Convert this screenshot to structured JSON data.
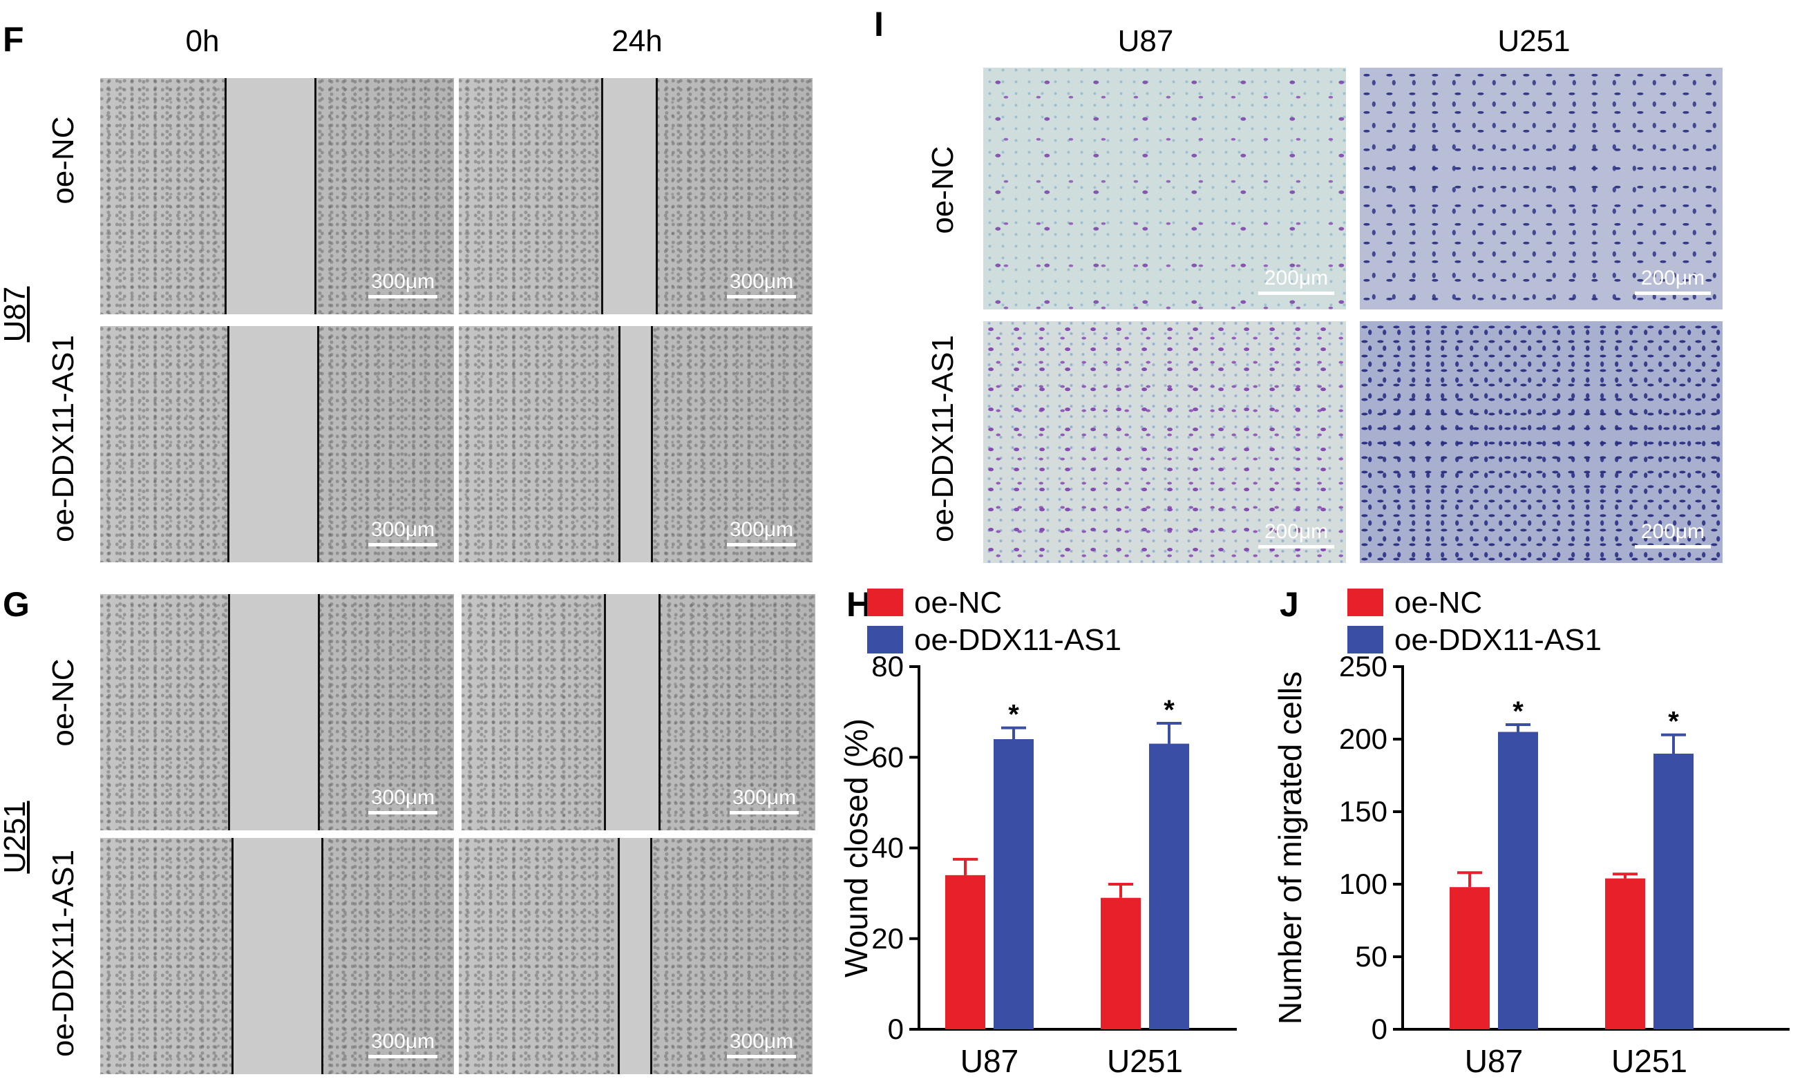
{
  "panels": {
    "F": {
      "label": "F",
      "col_titles": [
        "0h",
        "24h"
      ],
      "cell_line": "U87",
      "rows": [
        "oe-NC",
        "oe-DDX11-AS1"
      ],
      "scale": "300μm"
    },
    "G": {
      "label": "G",
      "cell_line": "U251",
      "rows": [
        "oe-NC",
        "oe-DDX11-AS1"
      ],
      "scale": "300μm"
    },
    "I": {
      "label": "I",
      "col_titles": [
        "U87",
        "U251"
      ],
      "rows": [
        "oe-NC",
        "oe-DDX11-AS1"
      ],
      "scale": "200μm"
    },
    "H": {
      "label": "H"
    },
    "J": {
      "label": "J"
    }
  },
  "colors": {
    "oe_nc": "#e8202a",
    "oe_ddx": "#3b4ea6"
  },
  "chart_data": [
    {
      "type": "bar",
      "panel": "H",
      "categories": [
        "U87",
        "U251"
      ],
      "series": [
        {
          "name": "oe-NC",
          "values": [
            34,
            29
          ],
          "errors": [
            3.5,
            3
          ]
        },
        {
          "name": "oe-DDX11-AS1",
          "values": [
            64,
            63
          ],
          "errors": [
            2.5,
            4.5
          ]
        }
      ],
      "significance": [
        "*",
        "*"
      ],
      "ylabel": "Wound closed (%)",
      "ylim": [
        0,
        80
      ],
      "yticks": [
        0,
        20,
        40,
        60,
        80
      ],
      "legend": "top"
    },
    {
      "type": "bar",
      "panel": "J",
      "categories": [
        "U87",
        "U251"
      ],
      "series": [
        {
          "name": "oe-NC",
          "values": [
            98,
            104
          ],
          "errors": [
            10,
            3
          ]
        },
        {
          "name": "oe-DDX11-AS1",
          "values": [
            205,
            190
          ],
          "errors": [
            5,
            13
          ]
        }
      ],
      "significance": [
        "*",
        "*"
      ],
      "ylabel": "Number of migrated cells",
      "ylim": [
        0,
        250
      ],
      "yticks": [
        0,
        50,
        100,
        150,
        200,
        250
      ],
      "legend": "top"
    }
  ]
}
